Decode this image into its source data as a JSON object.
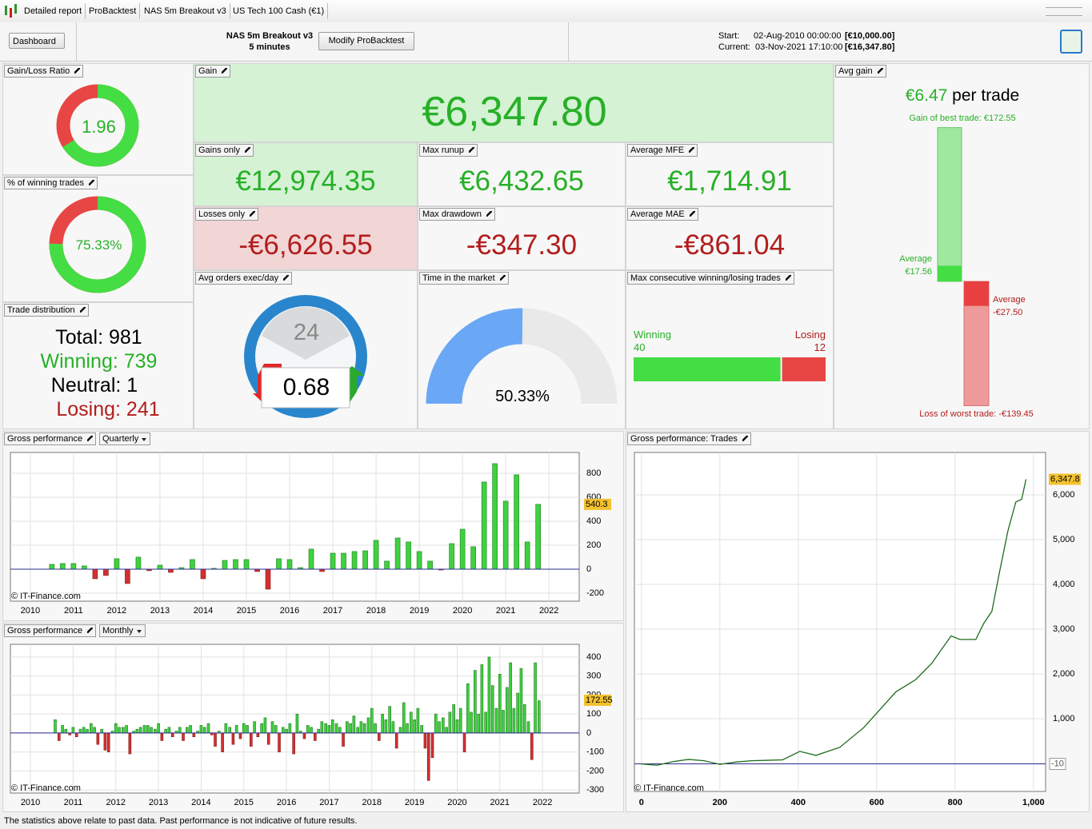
{
  "tabs": [
    "Detailed report",
    "ProBacktest",
    "NAS 5m Breakout v3",
    "US Tech 100 Cash (€1)"
  ],
  "toolbar": {
    "dashboard": "Dashboard",
    "strategy": "NAS 5m Breakout v3",
    "timeframe": "5 minutes",
    "button": "Modify ProBacktest",
    "start_label": "Start:",
    "start_value": "02-Aug-2010 00:00:00",
    "start_capital": "[€10,000.00]",
    "current_label": "Current:",
    "current_value": "03-Nov-2021 17:10:00",
    "current_capital": "[€16,347.80]"
  },
  "panels": {
    "gain_loss_ratio": {
      "title": "Gain/Loss Ratio",
      "value": 1.96
    },
    "winning_pct": {
      "title": "% of winning trades",
      "value": 75.33,
      "label": "75.33%"
    },
    "trade_distribution": {
      "title": "Trade distribution",
      "lines": [
        "Total: 981",
        "Winning: 739",
        "Neutral: 1",
        "Losing: 241"
      ]
    },
    "gain": {
      "title": "Gain",
      "value": "€6,347.80"
    },
    "gains_only": {
      "title": "Gains only",
      "value": "€12,974.35"
    },
    "max_runup": {
      "title": "Max runup",
      "value": "€6,432.65"
    },
    "average_mfe": {
      "title": "Average MFE",
      "value": "€1,714.91"
    },
    "losses_only": {
      "title": "Losses only",
      "value": "-€6,626.55"
    },
    "max_drawdown": {
      "title": "Max drawdown",
      "value": "-€347.30"
    },
    "average_mae": {
      "title": "Average MAE",
      "value": "-€861.04"
    },
    "avg_orders": {
      "title": "Avg orders exec/day",
      "dial": "24",
      "value": "0.68"
    },
    "time_in_market": {
      "title": "Time in the market",
      "value": 50.33,
      "label": "50.33%"
    },
    "max_consecutive": {
      "title": "Max consecutive winning/losing trades",
      "winning_label": "Winning",
      "winning": 40,
      "losing_label": "Losing",
      "losing": 12
    },
    "avg_gain": {
      "title": "Avg gain",
      "value": "€6.47",
      "unit": "per trade",
      "best_label": "Gain of best trade:",
      "best": {
        "value": 172.55,
        "label": "€172.55"
      },
      "avg_gain_label": "Average",
      "avg_gain": {
        "value": 17.56,
        "label": "€17.56"
      },
      "avg_loss_label": "Average",
      "avg_loss": {
        "value": -27.5,
        "label": "-€27.50"
      },
      "worst_label": "Loss of worst trade:",
      "worst": {
        "value": -139.45,
        "label": "-€139.45"
      }
    }
  },
  "charts": [
    {
      "type": "bar",
      "title": "Gross performance",
      "period": "Quarterly",
      "watermark": "© IT-Finance.com",
      "current_value": 540.3,
      "x": [
        2010.5,
        2010.75,
        2011,
        2011.25,
        2011.5,
        2011.75,
        2012,
        2012.25,
        2012.5,
        2012.75,
        2013,
        2013.25,
        2013.5,
        2013.75,
        2014,
        2014.25,
        2014.5,
        2014.75,
        2015,
        2015.25,
        2015.5,
        2015.75,
        2016,
        2016.25,
        2016.5,
        2016.75,
        2017,
        2017.25,
        2017.5,
        2017.75,
        2018,
        2018.25,
        2018.5,
        2018.75,
        2019,
        2019.25,
        2019.5,
        2019.75,
        2020,
        2020.25,
        2020.5,
        2020.75,
        2021,
        2021.25,
        2021.5,
        2021.75
      ],
      "values": [
        40,
        47,
        47,
        27,
        -80,
        -53,
        87,
        -120,
        100,
        -13,
        33,
        -27,
        13,
        80,
        -80,
        7,
        73,
        80,
        80,
        -20,
        -167,
        87,
        80,
        13,
        167,
        -20,
        133,
        133,
        147,
        153,
        240,
        67,
        260,
        227,
        147,
        67,
        -7,
        213,
        333,
        187,
        727,
        880,
        567,
        787,
        227,
        540.3
      ],
      "xlim": [
        2009.54,
        2022.7
      ],
      "ylim": [
        -267,
        973
      ],
      "xticks": [
        2010,
        2011,
        2012,
        2013,
        2014,
        2015,
        2016,
        2017,
        2018,
        2019,
        2020,
        2021,
        2022
      ],
      "yticks": [
        -200,
        0,
        200,
        400,
        600,
        800
      ],
      "color": "#3fd13f",
      "neg_color": "#d23030"
    },
    {
      "type": "bar",
      "title": "Gross performance",
      "period": "Monthly",
      "watermark": "© IT-Finance.com",
      "current_value": 172.55,
      "x": [
        2010.58,
        2010.67,
        2010.75,
        2010.83,
        2010.92,
        2011,
        2011.08,
        2011.17,
        2011.25,
        2011.33,
        2011.42,
        2011.5,
        2011.58,
        2011.67,
        2011.75,
        2011.83,
        2011.92,
        2012,
        2012.08,
        2012.17,
        2012.25,
        2012.33,
        2012.42,
        2012.5,
        2012.58,
        2012.67,
        2012.75,
        2012.83,
        2012.92,
        2013,
        2013.08,
        2013.17,
        2013.25,
        2013.33,
        2013.42,
        2013.5,
        2013.58,
        2013.67,
        2013.75,
        2013.83,
        2013.92,
        2014,
        2014.08,
        2014.17,
        2014.25,
        2014.33,
        2014.42,
        2014.5,
        2014.58,
        2014.67,
        2014.75,
        2014.83,
        2014.92,
        2015,
        2015.08,
        2015.17,
        2015.25,
        2015.33,
        2015.42,
        2015.5,
        2015.58,
        2015.67,
        2015.75,
        2015.83,
        2015.92,
        2016,
        2016.08,
        2016.17,
        2016.25,
        2016.33,
        2016.42,
        2016.5,
        2016.58,
        2016.67,
        2016.75,
        2016.83,
        2016.92,
        2017,
        2017.08,
        2017.17,
        2017.25,
        2017.33,
        2017.42,
        2017.5,
        2017.58,
        2017.67,
        2017.75,
        2017.83,
        2017.92,
        2018,
        2018.08,
        2018.17,
        2018.25,
        2018.33,
        2018.42,
        2018.5,
        2018.58,
        2018.67,
        2018.75,
        2018.83,
        2018.92,
        2019,
        2019.08,
        2019.17,
        2019.25,
        2019.33,
        2019.42,
        2019.5,
        2019.58,
        2019.67,
        2019.75,
        2019.83,
        2019.92,
        2020,
        2020.08,
        2020.17,
        2020.25,
        2020.33,
        2020.42,
        2020.5,
        2020.58,
        2020.67,
        2020.75,
        2020.83,
        2020.92,
        2021,
        2021.08,
        2021.17,
        2021.25,
        2021.33,
        2021.42,
        2021.5,
        2021.58,
        2021.67,
        2021.75,
        2021.83,
        2021.92
      ],
      "values": [
        70,
        -40,
        40,
        20,
        -10,
        30,
        -20,
        20,
        30,
        20,
        50,
        30,
        -60,
        20,
        -90,
        -100,
        10,
        50,
        30,
        30,
        40,
        -110,
        10,
        20,
        30,
        40,
        40,
        30,
        20,
        50,
        -40,
        20,
        30,
        -20,
        10,
        30,
        -40,
        30,
        40,
        -20,
        10,
        40,
        30,
        50,
        -10,
        -70,
        10,
        -100,
        50,
        30,
        -60,
        40,
        -30,
        50,
        40,
        -70,
        60,
        -20,
        50,
        80,
        -60,
        60,
        40,
        -100,
        30,
        20,
        50,
        -110,
        100,
        10,
        -30,
        40,
        30,
        -40,
        20,
        60,
        50,
        40,
        70,
        50,
        30,
        -70,
        60,
        50,
        90,
        30,
        60,
        50,
        80,
        130,
        50,
        -40,
        100,
        70,
        140,
        60,
        -80,
        30,
        160,
        50,
        110,
        70,
        130,
        40,
        -80,
        -250,
        -130,
        100,
        60,
        80,
        30,
        110,
        150,
        70,
        130,
        -100,
        260,
        110,
        330,
        100,
        360,
        110,
        400,
        250,
        130,
        310,
        120,
        240,
        370,
        130,
        210,
        340,
        150,
        60,
        -140,
        370,
        170
      ],
      "xlim": [
        2009.53,
        2022.86
      ],
      "ylim": [
        -316,
        467
      ],
      "xticks": [
        2010,
        2011,
        2012,
        2013,
        2014,
        2015,
        2016,
        2017,
        2018,
        2019,
        2020,
        2021,
        2022
      ],
      "yticks": [
        -300,
        -200,
        -100,
        0,
        100,
        200,
        300,
        400
      ],
      "color": "#3fd13f",
      "neg_color": "#d23030"
    },
    {
      "type": "line",
      "title": "Gross performance: Trades",
      "watermark": "© IT-Finance.com",
      "current_value": {
        "value": 6347.8,
        "label": "6,347.8"
      },
      "start_value": -10,
      "x": [
        0,
        40,
        80,
        120,
        160,
        200,
        240,
        280,
        320,
        360,
        404,
        445,
        506,
        567,
        608,
        649,
        700,
        740,
        790,
        812,
        853,
        873,
        894,
        914,
        935,
        955,
        970,
        981
      ],
      "values": [
        -10,
        -40,
        40,
        90,
        60,
        -20,
        30,
        60,
        70,
        80,
        270,
        180,
        360,
        800,
        1200,
        1600,
        1875,
        2230,
        2850,
        2770,
        2770,
        3125,
        3400,
        4300,
        5200,
        5840,
        5900,
        6347.8
      ],
      "xlim": [
        -18,
        1031
      ],
      "ylim": [
        -625,
        6946
      ],
      "xticks": [
        0,
        200,
        400,
        600,
        800,
        {
          "value": 1000,
          "label": "1,000"
        }
      ],
      "yticks": [
        {
          "value": 1000,
          "label": "1,000"
        },
        {
          "value": 2000,
          "label": "2,000"
        },
        {
          "value": 3000,
          "label": "3,000"
        },
        {
          "value": 4000,
          "label": "4,000"
        },
        {
          "value": 5000,
          "label": "5,000"
        },
        {
          "value": 6000,
          "label": "6,000"
        }
      ],
      "color": "#1d6b1d"
    }
  ],
  "footer": "The statistics above relate to past data. Past performance is not indicative of future results."
}
